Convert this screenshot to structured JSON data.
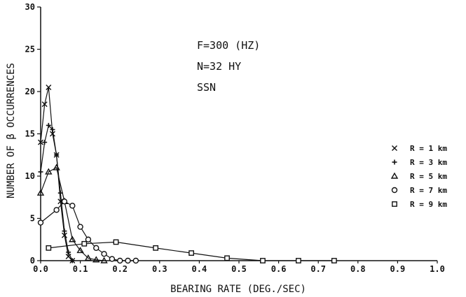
{
  "chart_data": {
    "type": "line",
    "xlabel": "BEARING RATE (DEG./SEC)",
    "ylabel": "NUMBER OF β OCCURRENCES",
    "xlim": [
      0.0,
      1.0
    ],
    "ylim": [
      0,
      30
    ],
    "x_ticks": [
      "0.0",
      "0.1",
      "0.2",
      "0.3",
      "0.4",
      "0.5",
      "0.6",
      "0.7",
      "0.8",
      "0.9",
      "1.0"
    ],
    "y_ticks": [
      "0",
      "5",
      "10",
      "15",
      "20",
      "25",
      "30"
    ],
    "annotations": [
      "F=300 (HZ)",
      "N=32 HY",
      "SSN"
    ],
    "legend_position": "right",
    "series": [
      {
        "name": "R = 1 km",
        "marker": "x",
        "x": [
          0.0,
          0.01,
          0.02,
          0.03,
          0.04,
          0.05,
          0.06,
          0.07,
          0.08
        ],
        "y": [
          14,
          18.5,
          20.5,
          15,
          12.5,
          7,
          3,
          0.5,
          0
        ]
      },
      {
        "name": "R = 3 km",
        "marker": "+",
        "x": [
          0.0,
          0.01,
          0.02,
          0.03,
          0.04,
          0.05,
          0.06,
          0.07,
          0.08
        ],
        "y": [
          10.5,
          14,
          16,
          15.5,
          12.5,
          8,
          3.5,
          1,
          0
        ]
      },
      {
        "name": "R = 5 km",
        "marker": "triangle",
        "x": [
          0.0,
          0.02,
          0.04,
          0.06,
          0.08,
          0.1,
          0.12,
          0.14,
          0.16
        ],
        "y": [
          8,
          10.5,
          11,
          7,
          2.5,
          1.2,
          0.3,
          0.1,
          0
        ]
      },
      {
        "name": "R = 7 km",
        "marker": "circle",
        "x": [
          0.0,
          0.04,
          0.06,
          0.08,
          0.1,
          0.12,
          0.14,
          0.16,
          0.18,
          0.2,
          0.22,
          0.24
        ],
        "y": [
          4.5,
          6,
          7,
          6.5,
          4,
          2.5,
          1.5,
          0.8,
          0.2,
          0,
          0,
          0
        ]
      },
      {
        "name": "R = 9 km",
        "marker": "square",
        "x": [
          0.02,
          0.11,
          0.19,
          0.29,
          0.38,
          0.47,
          0.56,
          0.65,
          0.74
        ],
        "y": [
          1.5,
          2,
          2.2,
          1.5,
          0.9,
          0.3,
          0,
          0,
          0
        ]
      }
    ]
  }
}
